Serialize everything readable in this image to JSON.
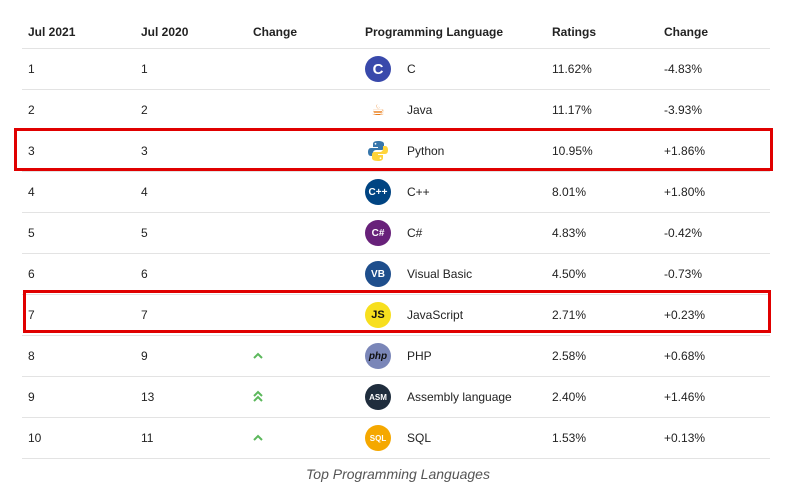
{
  "table": {
    "headers": [
      "Jul 2021",
      "Jul 2020",
      "Change",
      "Programming Language",
      "Ratings",
      "Change"
    ],
    "rows": [
      {
        "rank2021": "1",
        "rank2020": "1",
        "change": "",
        "language": "C",
        "ratings": "11.62%",
        "delta": "-4.83%",
        "icon": "c-logo-icon",
        "color": "#3949ab",
        "glyph": "C"
      },
      {
        "rank2021": "2",
        "rank2020": "2",
        "change": "",
        "language": "Java",
        "ratings": "11.17%",
        "delta": "-3.93%",
        "icon": "java-cup-icon",
        "color": "#ffffff",
        "glyph": "☕"
      },
      {
        "rank2021": "3",
        "rank2020": "3",
        "change": "",
        "language": "Python",
        "ratings": "10.95%",
        "delta": "+1.86%",
        "icon": "python-snake-icon",
        "color": "#ffffff",
        "glyph": ""
      },
      {
        "rank2021": "4",
        "rank2020": "4",
        "change": "",
        "language": "C++",
        "ratings": "8.01%",
        "delta": "+1.80%",
        "icon": "cpp-logo-icon",
        "color": "#004482",
        "glyph": "C++"
      },
      {
        "rank2021": "5",
        "rank2020": "5",
        "change": "",
        "language": "C#",
        "ratings": "4.83%",
        "delta": "-0.42%",
        "icon": "csharp-logo-icon",
        "color": "#68217a",
        "glyph": "C#"
      },
      {
        "rank2021": "6",
        "rank2020": "6",
        "change": "",
        "language": "Visual Basic",
        "ratings": "4.50%",
        "delta": "-0.73%",
        "icon": "visual-basic-logo-icon",
        "color": "#1e4e8c",
        "glyph": "VB"
      },
      {
        "rank2021": "7",
        "rank2020": "7",
        "change": "",
        "language": "JavaScript",
        "ratings": "2.71%",
        "delta": "+0.23%",
        "icon": "javascript-logo-icon",
        "color": "#f7df1e",
        "glyph": "JS"
      },
      {
        "rank2021": "8",
        "rank2020": "9",
        "change": "^",
        "language": "PHP",
        "ratings": "2.58%",
        "delta": "+0.68%",
        "icon": "php-logo-icon",
        "color": "#7a86b8",
        "glyph": "php"
      },
      {
        "rank2021": "9",
        "rank2020": "13",
        "change": "^^",
        "language": "Assembly language",
        "ratings": "2.40%",
        "delta": "+1.46%",
        "icon": "assembly-logo-icon",
        "color": "#1f2d3d",
        "glyph": "ASM"
      },
      {
        "rank2021": "10",
        "rank2020": "11",
        "change": "^",
        "language": "SQL",
        "ratings": "1.53%",
        "delta": "+0.13%",
        "icon": "sql-logo-icon",
        "color": "#f5a800",
        "glyph": "SQL"
      }
    ]
  },
  "caption": "Top Programming Languages",
  "highlight_color": "#e00000"
}
